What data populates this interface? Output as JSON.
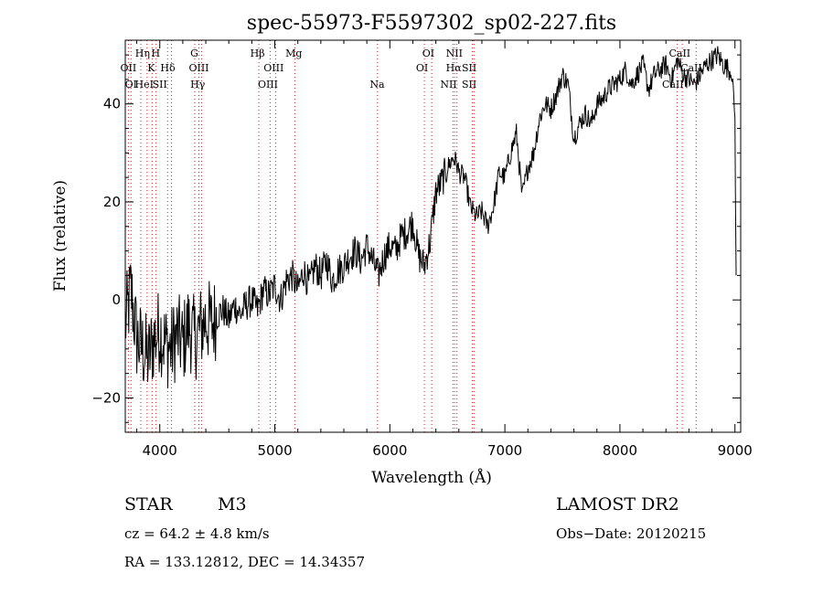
{
  "chart_data": {
    "type": "line",
    "title": "spec-55973-F5597302_sp02-227.fits",
    "xlabel": "Wavelength (Å)",
    "ylabel": "Flux (relative)",
    "xlim": [
      3700,
      9050
    ],
    "ylim": [
      -27,
      53
    ],
    "x_ticks": [
      4000,
      5000,
      6000,
      7000,
      8000,
      9000
    ],
    "y_ticks": [
      -20,
      0,
      20,
      40
    ],
    "x_tick_labels": [
      "4000",
      "5000",
      "6000",
      "7000",
      "8000",
      "9000"
    ],
    "y_tick_labels": [
      "−20",
      "0",
      "20",
      "40"
    ],
    "grid": false,
    "legend": "none",
    "series": [
      {
        "color": "#000000",
        "x": [
          3700,
          3750,
          3800,
          3850,
          3900,
          3950,
          4000,
          4050,
          4100,
          4150,
          4200,
          4250,
          4300,
          4350,
          4400,
          4450,
          4500,
          4550,
          4600,
          4650,
          4700,
          4750,
          4800,
          4850,
          4900,
          4950,
          5000,
          5050,
          5100,
          5150,
          5200,
          5250,
          5300,
          5350,
          5400,
          5450,
          5500,
          5550,
          5600,
          5650,
          5700,
          5750,
          5800,
          5850,
          5900,
          5950,
          6000,
          6050,
          6100,
          6150,
          6200,
          6250,
          6300,
          6350,
          6400,
          6450,
          6500,
          6550,
          6580,
          6600,
          6650,
          6700,
          6750,
          6800,
          6850,
          6900,
          6950,
          7000,
          7050,
          7100,
          7150,
          7200,
          7250,
          7300,
          7350,
          7400,
          7450,
          7500,
          7550,
          7600,
          7650,
          7700,
          7750,
          7800,
          7850,
          7900,
          7950,
          8000,
          8050,
          8100,
          8150,
          8200,
          8250,
          8300,
          8350,
          8400,
          8450,
          8500,
          8550,
          8600,
          8650,
          8700,
          8750,
          8800,
          8850,
          8900,
          8950,
          8980,
          9000,
          9010
        ],
        "y": [
          -5,
          2,
          -8,
          -10,
          -12,
          -8,
          -6,
          -9,
          -10,
          -7,
          -9,
          -5,
          -8,
          -6,
          -4,
          -5,
          -3,
          -2,
          -4,
          -1,
          -3,
          -1,
          0,
          -2,
          2,
          1,
          3,
          0,
          4,
          5,
          2,
          6,
          3,
          7,
          5,
          8,
          4,
          6,
          7,
          9,
          10,
          8,
          11,
          8,
          5,
          9,
          11,
          10,
          13,
          14,
          16,
          9,
          7,
          12,
          22,
          24,
          27,
          29,
          28,
          26,
          25,
          19,
          17,
          18,
          15,
          19,
          26,
          25,
          30,
          34,
          21,
          27,
          30,
          37,
          40,
          39,
          42,
          46,
          44,
          33,
          36,
          38,
          36,
          40,
          41,
          43,
          44,
          45,
          47,
          44,
          46,
          48,
          43,
          46,
          47,
          48,
          45,
          49,
          46,
          45,
          44,
          46,
          48,
          49,
          50,
          48,
          47,
          45,
          37,
          5
        ]
      }
    ],
    "annotations": {
      "lines": [
        {
          "wl": 3727,
          "label": "OII",
          "row": 2,
          "label_wl": 3727
        },
        {
          "wl": 3750,
          "label": "OI",
          "row": 3,
          "label_wl": 3750
        },
        {
          "wl": 3835,
          "label": "Hη",
          "row": 1,
          "label_wl": 3850
        },
        {
          "wl": 3889,
          "label": "HeI",
          "row": 3,
          "label_wl": 3865
        },
        {
          "wl": 3933,
          "label": "K",
          "row": 2,
          "label_wl": 3925
        },
        {
          "wl": 3968,
          "label": "H",
          "row": 1,
          "label_wl": 3965
        },
        {
          "wl": 4068,
          "label": "SII",
          "row": 3,
          "label_wl": 4000
        },
        {
          "wl": 4102,
          "label": "Hδ",
          "row": 2,
          "label_wl": 4070
        },
        {
          "wl": 4304,
          "label": "G",
          "row": 1,
          "label_wl": 4300
        },
        {
          "wl": 4340,
          "label": "Hγ",
          "row": 3,
          "label_wl": 4330
        },
        {
          "wl": 4363,
          "label": "OIII",
          "row": 2,
          "label_wl": 4340
        },
        {
          "wl": 4861,
          "label": "Hβ",
          "row": 1,
          "label_wl": 4850
        },
        {
          "wl": 4959,
          "label": "OIII",
          "row": 3,
          "label_wl": 4940
        },
        {
          "wl": 5007,
          "label": "OIII",
          "row": 2,
          "label_wl": 4990
        },
        {
          "wl": 5175,
          "label": "Mg",
          "row": 1,
          "label_wl": 5165
        },
        {
          "wl": 5893,
          "label": "Na",
          "row": 3,
          "label_wl": 5890
        },
        {
          "wl": 6300,
          "label": "OI",
          "row": 2,
          "label_wl": 6280
        },
        {
          "wl": 6364,
          "label": "OI",
          "row": 1,
          "label_wl": 6335
        },
        {
          "wl": 6548,
          "label": "NII",
          "row": 3,
          "label_wl": 6510
        },
        {
          "wl": 6563,
          "label": "Hα",
          "row": 2,
          "label_wl": 6555
        },
        {
          "wl": 6583,
          "label": "NII",
          "row": 1,
          "label_wl": 6560
        },
        {
          "wl": 6717,
          "label": "SII",
          "row": 2,
          "label_wl": 6690
        },
        {
          "wl": 6731,
          "label": "SII",
          "row": 3,
          "label_wl": 6690
        },
        {
          "wl": 8498,
          "label": "CaII",
          "row": 3,
          "label_wl": 8460
        },
        {
          "wl": 8542,
          "label": "CaII",
          "row": 1,
          "label_wl": 8520
        },
        {
          "wl": 8662,
          "label": "CaII",
          "row": 2,
          "label_wl": 8620
        }
      ]
    }
  },
  "info": {
    "object_class": "STAR",
    "subclass": "M3",
    "survey": "LAMOST  DR2",
    "cz": "cz = 64.2 ± 4.8 km/s",
    "obs_date": "Obs−Date: 20120215",
    "coords": "RA = 133.12812, DEC =  14.34357"
  }
}
